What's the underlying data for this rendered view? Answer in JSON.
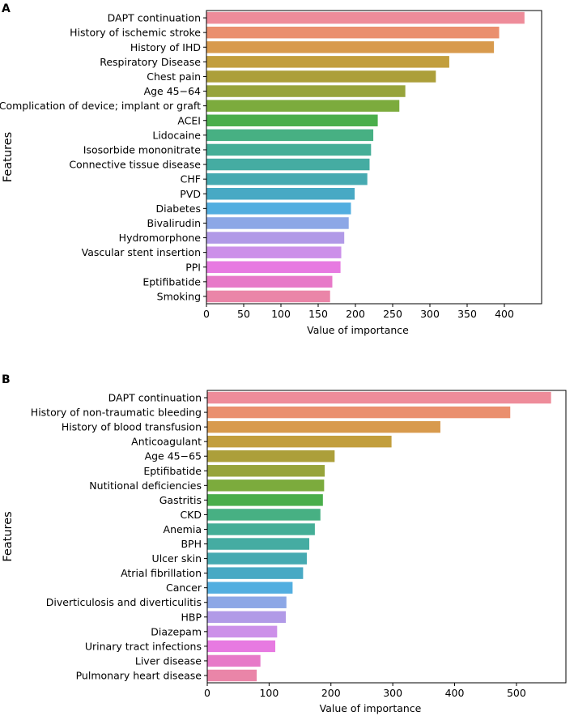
{
  "chart_data": [
    {
      "panel": "A",
      "type": "bar",
      "orientation": "horizontal",
      "xlabel": "Value of importance",
      "ylabel": "Features",
      "xlim": [
        0,
        450
      ],
      "xticks": [
        0,
        50,
        100,
        150,
        200,
        250,
        300,
        350,
        400
      ],
      "categories": [
        "DAPT continuation",
        "History of ischemic stroke",
        "History of IHD",
        "Respiratory Disease",
        "Chest pain",
        "Age 45−64",
        "Complication of device; implant or graft",
        "ACEI",
        "Lidocaine",
        "Isosorbide mononitrate",
        "Connective tissue disease",
        "CHF",
        "PVD",
        "Diabetes",
        "Bivalirudin",
        "Hydromorphone",
        "Vascular stent insertion",
        "PPI",
        "Eptifibatide",
        "Smoking"
      ],
      "values": [
        427,
        393,
        386,
        326,
        308,
        267,
        259,
        230,
        224,
        221,
        219,
        216,
        199,
        194,
        191,
        185,
        181,
        180,
        169,
        166
      ],
      "colors": [
        "#ee8c9a",
        "#ea8f6e",
        "#d89a4d",
        "#c29e3d",
        "#ac9f3a",
        "#97a43b",
        "#7cab3d",
        "#4aae4b",
        "#47b083",
        "#45ae97",
        "#45aca2",
        "#46aab1",
        "#48a9c4",
        "#52aee0",
        "#8ca7e6",
        "#b19ae7",
        "#cc90e9",
        "#e77ae1",
        "#e779c8",
        "#ea85a8"
      ]
    },
    {
      "panel": "B",
      "type": "bar",
      "orientation": "horizontal",
      "xlabel": "Value of importance",
      "ylabel": "Features",
      "xlim": [
        0,
        580
      ],
      "xticks": [
        0,
        100,
        200,
        300,
        400,
        500
      ],
      "categories": [
        "DAPT continuation",
        "History of non-traumatic bleeding",
        "History of blood transfusion",
        "Anticoagulant",
        "Age 45−65",
        "Eptifibatide",
        "Nutitional deficiencies",
        "Gastritis",
        "CKD",
        "Anemia",
        "BPH",
        "Ulcer skin",
        "Atrial fibrillation",
        "Cancer",
        "Diverticulosis and diverticulitis",
        "HBP",
        "Diazepam",
        "Urinary tract infections",
        "Liver disease",
        "Pulmonary heart disease"
      ],
      "values": [
        556,
        490,
        377,
        298,
        206,
        190,
        189,
        187,
        183,
        174,
        165,
        161,
        155,
        138,
        128,
        127,
        113,
        110,
        86,
        80
      ],
      "colors": [
        "#ee8c9a",
        "#ea8f6e",
        "#d89a4d",
        "#c29e3d",
        "#ac9f3a",
        "#97a43b",
        "#7cab3d",
        "#4aae4b",
        "#47b083",
        "#45ae97",
        "#45aca2",
        "#46aab1",
        "#48a9c4",
        "#52aee0",
        "#8ca7e6",
        "#b19ae7",
        "#cc90e9",
        "#e77ae1",
        "#e779c8",
        "#ea85a8"
      ]
    }
  ]
}
